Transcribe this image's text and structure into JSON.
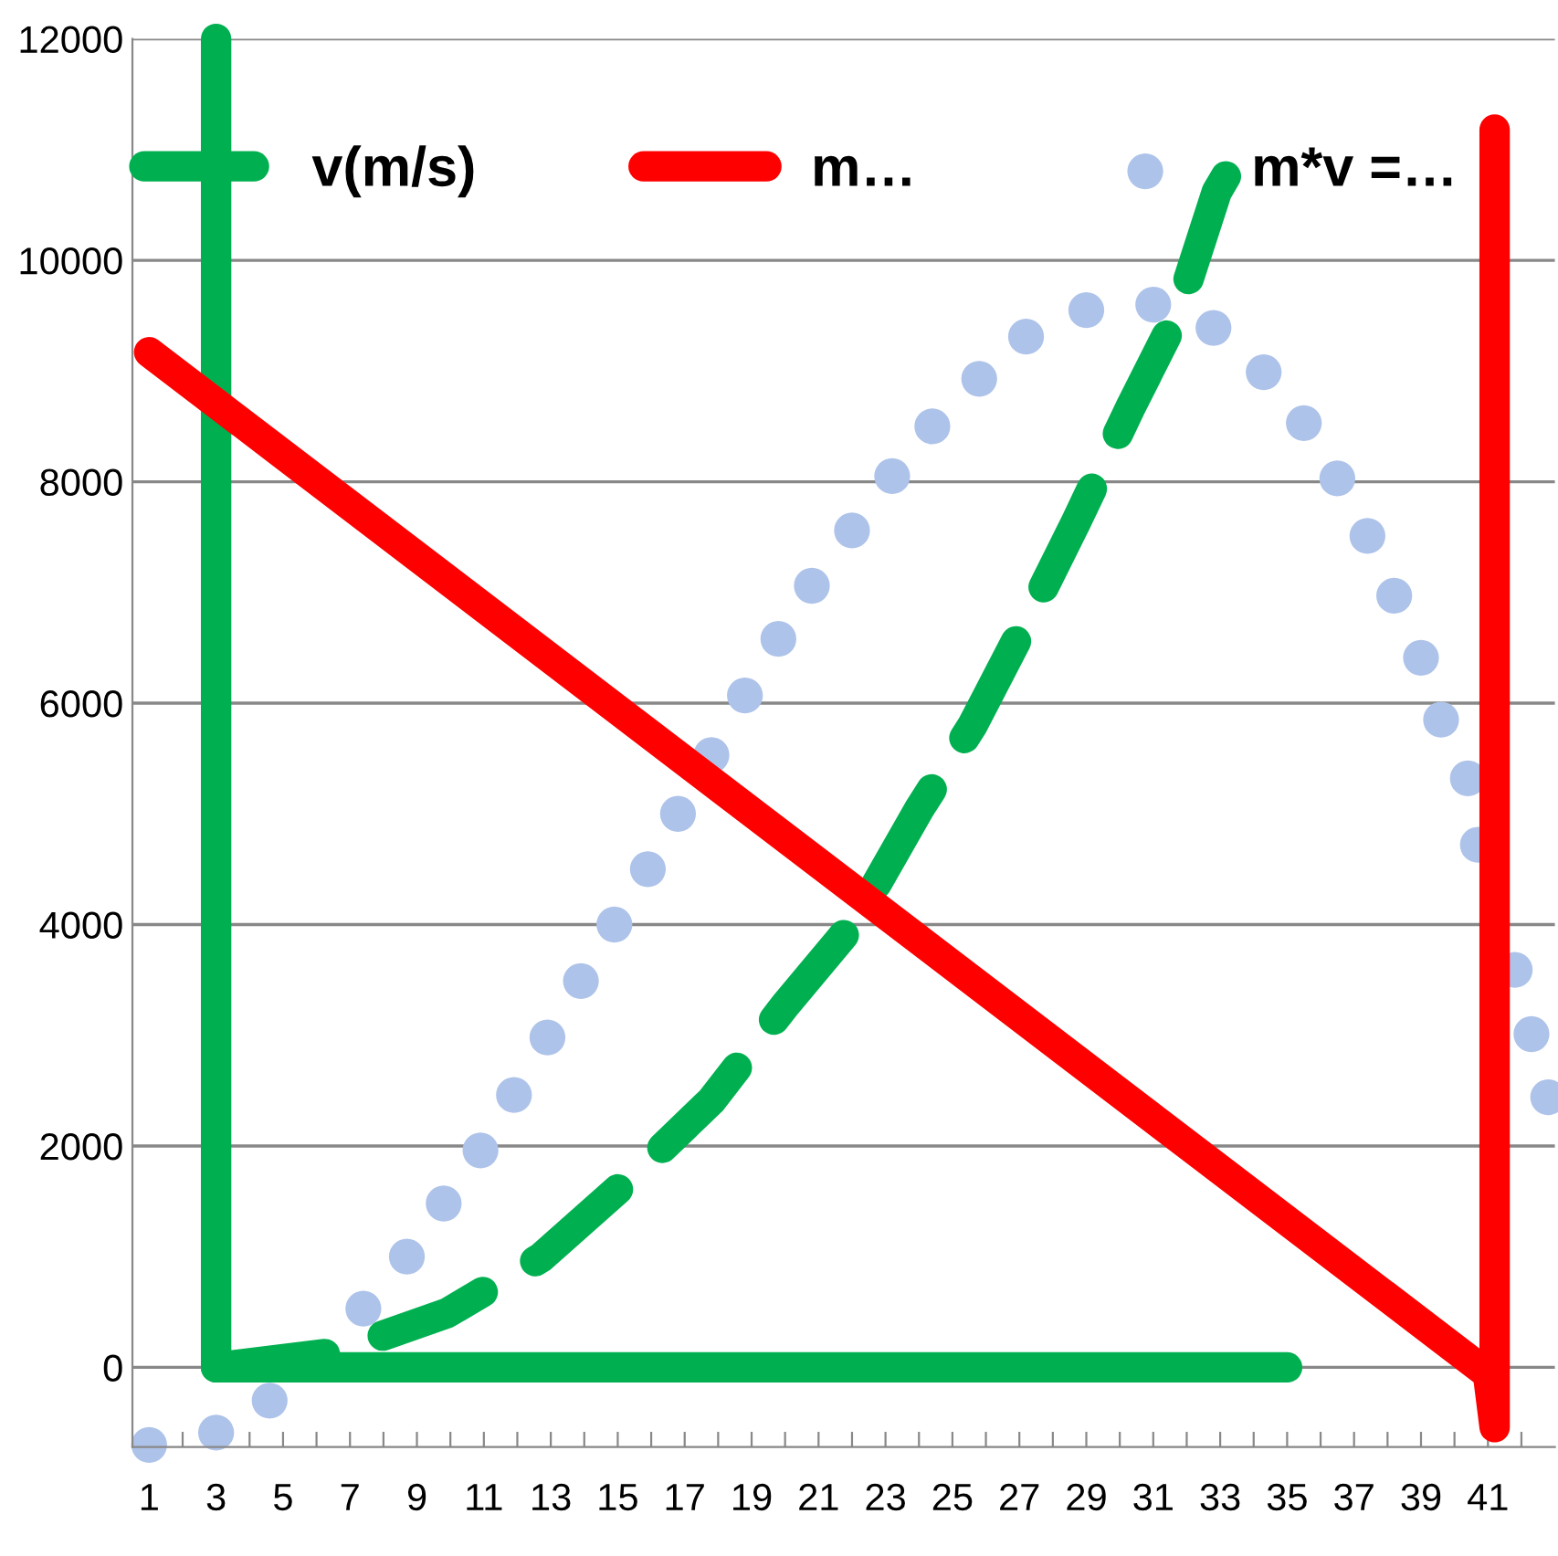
{
  "chart_data": {
    "type": "line",
    "xlim": [
      0.5,
      43
    ],
    "ylim": [
      -720,
      12000
    ],
    "xticks": [
      1,
      {
        "value": 2,
        "label": null
      },
      3,
      {
        "value": 4,
        "label": null
      },
      5,
      {
        "value": 6,
        "label": null
      },
      7,
      {
        "value": 8,
        "label": null
      },
      9,
      {
        "value": 10,
        "label": null
      },
      11,
      {
        "value": 12,
        "label": null
      },
      13,
      {
        "value": 14,
        "label": null
      },
      15,
      {
        "value": 16,
        "label": null
      },
      17,
      {
        "value": 18,
        "label": null
      },
      19,
      {
        "value": 20,
        "label": null
      },
      21,
      {
        "value": 22,
        "label": null
      },
      23,
      {
        "value": 24,
        "label": null
      },
      25,
      {
        "value": 26,
        "label": null
      },
      27,
      {
        "value": 28,
        "label": null
      },
      29,
      {
        "value": 30,
        "label": null
      },
      31,
      {
        "value": 32,
        "label": null
      },
      33,
      {
        "value": 34,
        "label": null
      },
      35,
      {
        "value": 36,
        "label": null
      },
      37,
      {
        "value": 38,
        "label": null
      },
      39,
      {
        "value": 40,
        "label": null
      },
      41,
      {
        "value": 42,
        "label": null
      }
    ],
    "yticks": [
      0,
      2000,
      4000,
      6000,
      8000,
      10000,
      12000
    ],
    "grid": "y",
    "legend": "top",
    "series": [
      {
        "name": "v(m/s)",
        "line_style": "dashed",
        "color": "#00b050",
        "x": [
          3.0,
          6.5,
          9.9,
          12.7,
          15.5,
          17.8,
          20.0,
          22.1,
          24.0,
          25.6,
          27.4,
          28.7,
          30.3,
          31.7,
          32.9,
          33.8
        ],
        "values": [
          0,
          130,
          490,
          990,
          1740,
          2410,
          3270,
          4030,
          5040,
          5800,
          6850,
          7640,
          8660,
          9500,
          10620,
          11080
        ]
      },
      {
        "line_style": "solid",
        "color": "#00b050",
        "x": [
          3.0,
          3.0,
          35.0
        ],
        "values": [
          12000,
          0,
          0
        ]
      },
      {
        "name": "m…",
        "line_style": "solid",
        "color": "#ff0000",
        "x": [
          1.0,
          41.0,
          41.2,
          41.2
        ],
        "values": [
          9170,
          -60,
          -540,
          11180
        ]
      },
      {
        "name": "m*v =…",
        "type": "scatter",
        "marker": "circle",
        "color": "#aec3ea",
        "x": [
          1.0,
          3.0,
          4.6,
          7.4,
          8.7,
          9.8,
          10.9,
          11.9,
          12.9,
          13.9,
          14.9,
          15.9,
          16.8,
          17.8,
          18.8,
          19.8,
          20.8,
          22.0,
          23.2,
          24.4,
          25.8,
          27.2,
          29.0,
          31.0,
          32.8,
          34.3,
          35.5,
          36.5,
          37.4,
          38.2,
          39.0,
          39.6,
          40.4,
          40.7,
          41.8,
          42.3,
          42.8
        ],
        "values": [
          -700,
          -590,
          -300,
          530,
          1000,
          1480,
          1960,
          2460,
          2980,
          3490,
          4000,
          4500,
          5000,
          5530,
          6070,
          6580,
          7060,
          7560,
          8050,
          8500,
          8930,
          9310,
          9550,
          9600,
          9390,
          8990,
          8530,
          8030,
          7510,
          6970,
          6410,
          5850,
          5320,
          4720,
          3590,
          3010,
          2440
        ]
      }
    ]
  }
}
